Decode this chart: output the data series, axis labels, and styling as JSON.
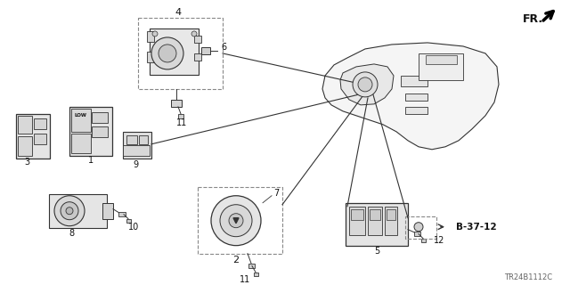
{
  "bg_color": "#ffffff",
  "diagram_code": "TR24B1112C",
  "line_color": "#333333",
  "dashed_box_color": "#888888",
  "label_color": "#111111",
  "fr_text": "FR.",
  "b_ref_text": "B-37-12",
  "figsize": [
    6.4,
    3.2
  ],
  "dpi": 100
}
